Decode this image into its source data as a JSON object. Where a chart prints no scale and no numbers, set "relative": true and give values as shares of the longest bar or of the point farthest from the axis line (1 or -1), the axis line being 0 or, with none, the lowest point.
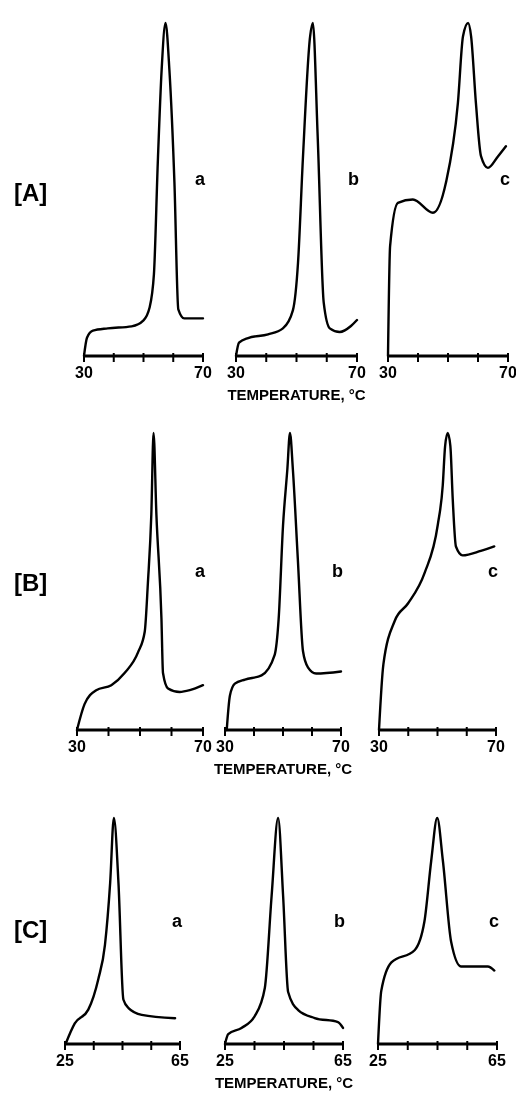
{
  "chart_data": [
    {
      "type": "line",
      "title": "a",
      "annotations": [
        "[A]"
      ],
      "relative": true,
      "tick_labels": "x",
      "line_style": "solid",
      "xlim": [
        30,
        70
      ],
      "xticks": [
        30,
        {
          "value": 40,
          "label": null
        },
        {
          "value": 50,
          "label": null
        },
        {
          "value": 60,
          "label": null
        },
        70
      ],
      "series": [
        {
          "color": "#000000",
          "x": [
            30,
            31,
            33,
            38,
            46,
            50,
            52,
            53.5,
            54.8,
            56.1,
            57.4,
            58.7,
            60.4,
            61.7,
            63.7,
            70
          ],
          "values": [
            0,
            0.055,
            0.076,
            0.083,
            0.089,
            0.107,
            0.144,
            0.245,
            0.58,
            0.86,
            1,
            0.86,
            0.52,
            0.14,
            0.113,
            0.113
          ]
        }
      ]
    },
    {
      "type": "line",
      "title": "b",
      "xlabel": "TEMPERATURE, °C",
      "relative": true,
      "tick_labels": "x",
      "line_style": "solid",
      "xlim": [
        30,
        70
      ],
      "xticks": [
        30,
        {
          "value": 40,
          "label": null
        },
        {
          "value": 50,
          "label": null
        },
        {
          "value": 60,
          "label": null
        },
        70
      ],
      "series": [
        {
          "color": "#000000",
          "x": [
            30,
            31,
            34,
            40.6,
            45.5,
            48.8,
            50.5,
            52.1,
            54.5,
            55.4,
            57,
            59,
            61,
            64.3,
            68,
            70
          ],
          "values": [
            0,
            0.04,
            0.054,
            0.065,
            0.083,
            0.137,
            0.28,
            0.59,
            0.96,
            1,
            0.66,
            0.16,
            0.083,
            0.072,
            0.09,
            0.108
          ]
        }
      ]
    },
    {
      "type": "line",
      "title": "c",
      "relative": true,
      "tick_labels": "x",
      "line_style": "solid",
      "xlim": [
        30,
        70
      ],
      "xticks": [
        30,
        {
          "value": 40,
          "label": null
        },
        {
          "value": 50,
          "label": null
        },
        {
          "value": 60,
          "label": null
        },
        70
      ],
      "series": [
        {
          "color": "#000000",
          "x": [
            30,
            30.7,
            33.3,
            38.3,
            45,
            49.3,
            53.3,
            55,
            56.7,
            57.7,
            59.3,
            61,
            63.3,
            66.7,
            69.3
          ],
          "values": [
            0,
            0.33,
            0.46,
            0.47,
            0.43,
            0.52,
            0.76,
            0.96,
            1,
            0.96,
            0.76,
            0.6,
            0.565,
            0.6,
            0.63
          ]
        }
      ]
    },
    {
      "type": "line",
      "title": "a",
      "annotations": [
        "[B]"
      ],
      "relative": true,
      "tick_labels": "x",
      "line_style": "solid",
      "xlim": [
        30,
        70
      ],
      "xticks": [
        30,
        {
          "value": 40,
          "label": null
        },
        {
          "value": 50,
          "label": null
        },
        {
          "value": 60,
          "label": null
        },
        70
      ],
      "series": [
        {
          "color": "#000000",
          "x": [
            30,
            32.4,
            36.1,
            40.9,
            45.1,
            49.4,
            51.5,
            52.5,
            53.6,
            54.3,
            55.2,
            56.8,
            57.3,
            58.9,
            62.6,
            65.8,
            70
          ],
          "values": [
            0,
            0.087,
            0.134,
            0.151,
            0.192,
            0.262,
            0.331,
            0.494,
            0.727,
            1,
            0.727,
            0.378,
            0.192,
            0.14,
            0.128,
            0.134,
            0.151
          ]
        }
      ]
    },
    {
      "type": "line",
      "title": "b",
      "xlabel": "TEMPERATURE, °C",
      "relative": true,
      "tick_labels": "x",
      "line_style": "solid",
      "xlim": [
        30,
        70
      ],
      "xticks": [
        30,
        {
          "value": 40,
          "label": null
        },
        {
          "value": 50,
          "label": null
        },
        {
          "value": 60,
          "label": null
        },
        70
      ],
      "series": [
        {
          "color": "#000000",
          "x": [
            30.6,
            31.7,
            33.4,
            36.9,
            42.6,
            47.1,
            48.5,
            50,
            51.5,
            52.4,
            53.4,
            55.1,
            56.9,
            58.6,
            61.4,
            70
          ],
          "values": [
            0,
            0.116,
            0.156,
            0.17,
            0.184,
            0.252,
            0.374,
            0.687,
            0.878,
            1,
            0.878,
            0.578,
            0.265,
            0.211,
            0.19,
            0.197
          ]
        }
      ]
    },
    {
      "type": "line",
      "title": "c",
      "relative": true,
      "tick_labels": "x",
      "line_style": "solid",
      "xlim": [
        30,
        70
      ],
      "xticks": [
        30,
        {
          "value": 40,
          "label": null
        },
        {
          "value": 50,
          "label": null
        },
        {
          "value": 60,
          "label": null
        },
        70
      ],
      "series": [
        {
          "color": "#000000",
          "x": [
            30,
            31.5,
            35.4,
            39.9,
            45.6,
            50.1,
            51.8,
            52.6,
            53.5,
            54.4,
            55.2,
            56.3,
            58.6,
            64.8,
            69.4
          ],
          "values": [
            0,
            0.221,
            0.368,
            0.426,
            0.529,
            0.691,
            0.824,
            0.956,
            1,
            0.956,
            0.779,
            0.618,
            0.588,
            0.603,
            0.618
          ]
        }
      ]
    },
    {
      "type": "line",
      "title": "a",
      "annotations": [
        "[C]"
      ],
      "relative": true,
      "tick_labels": "x",
      "line_style": "solid",
      "xlim": [
        25,
        65
      ],
      "xticks": [
        25,
        {
          "value": 35,
          "label": null
        },
        {
          "value": 45,
          "label": null
        },
        {
          "value": 55,
          "label": null
        },
        65
      ],
      "series": [
        {
          "color": "#000000",
          "x": [
            25.2,
            28.4,
            33.1,
            36.6,
            38.9,
            40.7,
            42,
            43.6,
            45.3,
            47.1,
            51.7,
            63.3
          ],
          "values": [
            0,
            0.091,
            0.152,
            0.288,
            0.439,
            0.712,
            1,
            0.712,
            0.197,
            0.159,
            0.129,
            0.114
          ]
        }
      ]
    },
    {
      "type": "line",
      "title": "b",
      "xlabel": "TEMPERATURE, °C",
      "relative": true,
      "tick_labels": "x",
      "line_style": "solid",
      "xlim": [
        25,
        65
      ],
      "xticks": [
        25,
        {
          "value": 35,
          "label": null
        },
        {
          "value": 45,
          "label": null
        },
        {
          "value": 55,
          "label": null
        },
        65
      ],
      "series": [
        {
          "color": "#000000",
          "x": [
            25,
            26.1,
            30.6,
            35.1,
            38.5,
            40.8,
            43,
            44.7,
            46.4,
            49.8,
            55.4,
            63.3,
            65
          ],
          "values": [
            0,
            0.044,
            0.071,
            0.124,
            0.248,
            0.655,
            1,
            0.655,
            0.23,
            0.15,
            0.115,
            0.097,
            0.071
          ]
        }
      ]
    },
    {
      "type": "line",
      "title": "c",
      "relative": true,
      "tick_labels": "x",
      "line_style": "solid",
      "xlim": [
        25,
        65
      ],
      "xticks": [
        25,
        {
          "value": 35,
          "label": null
        },
        {
          "value": 45,
          "label": null
        },
        {
          "value": 55,
          "label": null
        },
        65
      ],
      "series": [
        {
          "color": "#000000",
          "x": [
            25,
            26.1,
            29.5,
            37.3,
            40.6,
            42.9,
            44.9,
            46.8,
            49.6,
            52.9,
            61.9,
            64.1
          ],
          "values": [
            0,
            0.235,
            0.361,
            0.415,
            0.542,
            0.812,
            1,
            0.812,
            0.451,
            0.343,
            0.343,
            0.325
          ]
        }
      ]
    }
  ]
}
